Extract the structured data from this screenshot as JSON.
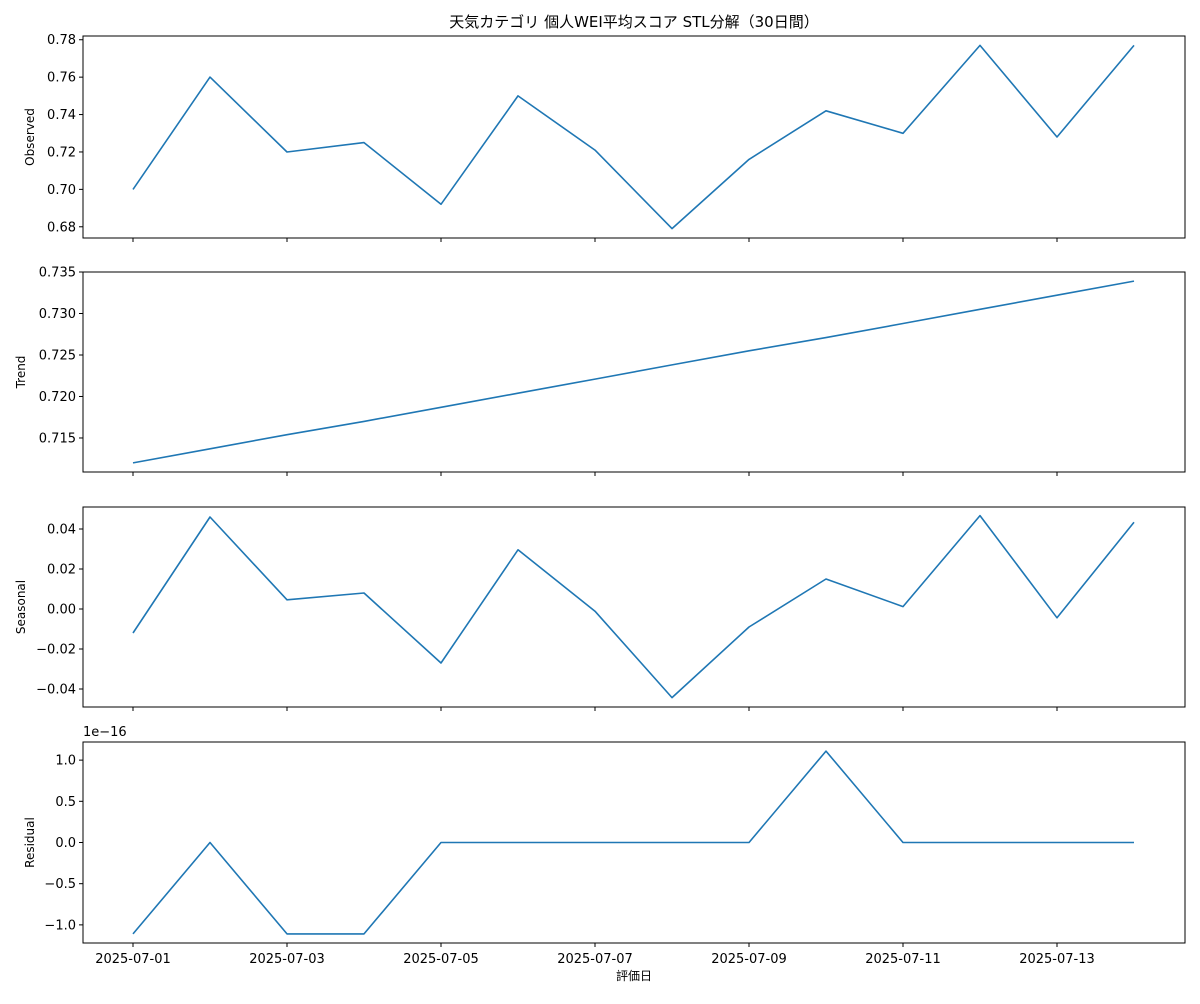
{
  "chart_data": {
    "type": "line",
    "title": "天気カテゴリ 個人WEI平均スコア STL分解（30日間）",
    "xlabel": "評価日",
    "x": [
      "2025-07-01",
      "2025-07-02",
      "2025-07-03",
      "2025-07-04",
      "2025-07-05",
      "2025-07-06",
      "2025-07-07",
      "2025-07-08",
      "2025-07-09",
      "2025-07-10",
      "2025-07-11",
      "2025-07-12",
      "2025-07-13",
      "2025-07-14"
    ],
    "x_ticks": [
      "2025-07-01",
      "2025-07-03",
      "2025-07-05",
      "2025-07-07",
      "2025-07-09",
      "2025-07-11",
      "2025-07-13"
    ],
    "line_color": "#1f77b4",
    "grid": false,
    "panels": [
      {
        "ylabel": "Observed",
        "ylim": [
          0.674,
          0.782
        ],
        "yticks": [
          0.68,
          0.7,
          0.72,
          0.74,
          0.76,
          0.78
        ],
        "ytick_labels": [
          "0.68",
          "0.70",
          "0.72",
          "0.74",
          "0.76",
          "0.78"
        ],
        "offset_text": "",
        "values": [
          0.7,
          0.76,
          0.72,
          0.725,
          0.692,
          0.75,
          0.721,
          0.679,
          0.716,
          0.742,
          0.73,
          0.777,
          0.728,
          0.777
        ]
      },
      {
        "ylabel": "Trend",
        "ylim": [
          0.7109,
          0.735
        ],
        "yticks": [
          0.715,
          0.72,
          0.725,
          0.73,
          0.735
        ],
        "ytick_labels": [
          "0.715",
          "0.720",
          "0.725",
          "0.730",
          "0.735"
        ],
        "offset_text": "",
        "values": [
          0.712,
          0.7137,
          0.7154,
          0.717,
          0.7187,
          0.7204,
          0.7221,
          0.7238,
          0.7255,
          0.7271,
          0.7288,
          0.7305,
          0.7322,
          0.7339
        ]
      },
      {
        "ylabel": "Seasonal",
        "ylim": [
          -0.049,
          0.051
        ],
        "yticks": [
          -0.04,
          -0.02,
          0.0,
          0.02,
          0.04
        ],
        "ytick_labels": [
          "−0.04",
          "−0.02",
          "0.00",
          "0.02",
          "0.04"
        ],
        "offset_text": "",
        "values": [
          -0.012,
          0.046,
          0.0046,
          0.008,
          -0.027,
          0.0296,
          -0.0011,
          -0.0443,
          -0.009,
          0.015,
          0.0012,
          0.0467,
          -0.0044,
          0.0434
        ]
      },
      {
        "ylabel": "Residual",
        "ylim": [
          -1.22,
          1.22
        ],
        "yticks": [
          -1.0,
          -0.5,
          0.0,
          0.5,
          1.0
        ],
        "ytick_labels": [
          "−1.0",
          "−0.5",
          "0.0",
          "0.5",
          "1.0"
        ],
        "offset_text": "1e−16",
        "values": [
          -1.11,
          0.0,
          -1.11,
          -1.11,
          0.0,
          0.0,
          0.0,
          0.0,
          0.0,
          1.11,
          0.0,
          0.0,
          0.0,
          0.0
        ]
      }
    ]
  }
}
